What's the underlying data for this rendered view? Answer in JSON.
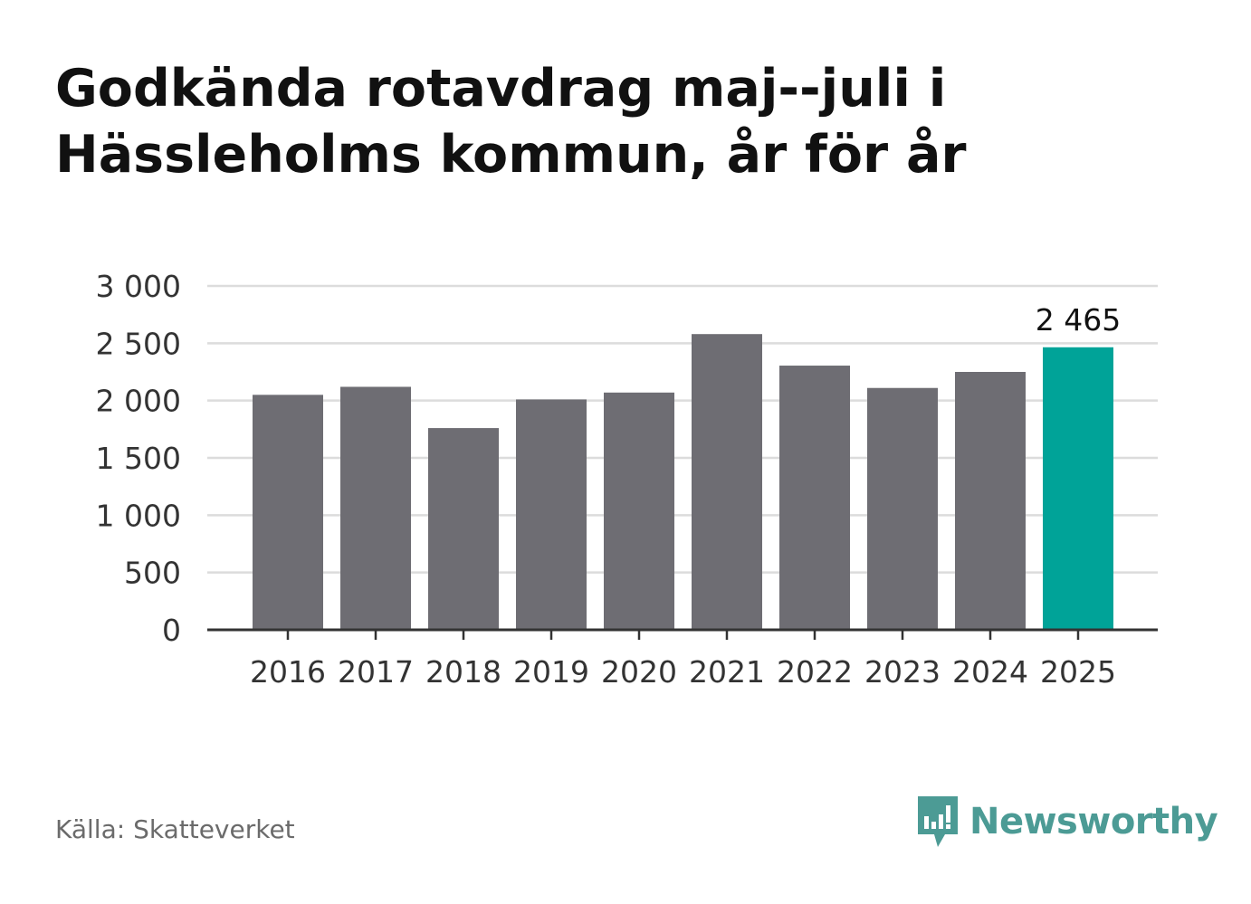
{
  "title": {
    "line1": "Godkända rotavdrag maj--juli i",
    "line2": "Hässleholms kommun, år för år"
  },
  "source": "Källa: Skatteverket",
  "brand": {
    "name": "Newsworthy",
    "icon": "newsworthy-logo-icon",
    "color": "#4c9b95"
  },
  "colors": {
    "bar": "#6e6d73",
    "highlight": "#00a398",
    "grid": "#dcdcdc",
    "axis": "#333333"
  },
  "chart_data": {
    "type": "bar",
    "title": "Godkända rotavdrag maj--juli i Hässleholms kommun, år för år",
    "xlabel": "",
    "ylabel": "",
    "categories": [
      "2016",
      "2017",
      "2018",
      "2019",
      "2020",
      "2021",
      "2022",
      "2023",
      "2024",
      "2025"
    ],
    "values": [
      2050,
      2120,
      1760,
      2010,
      2070,
      2580,
      2305,
      2110,
      2250,
      2465
    ],
    "highlight_index": 9,
    "data_labels": [
      {
        "index": 9,
        "text": "2 465"
      }
    ],
    "ylim": [
      0,
      3000
    ],
    "yticks": [
      0,
      500,
      1000,
      1500,
      2000,
      2500,
      3000
    ],
    "ytick_labels": [
      "0",
      "500",
      "1 000",
      "1 500",
      "2 000",
      "2 500",
      "3 000"
    ],
    "grid": true,
    "legend": "none"
  }
}
